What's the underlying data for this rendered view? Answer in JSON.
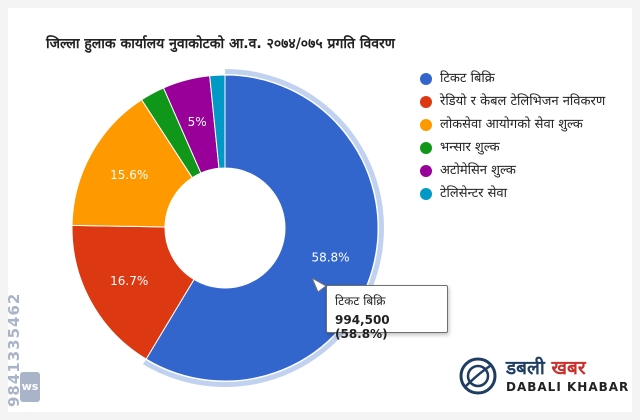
{
  "chart_data": {
    "type": "pie",
    "title": "जिल्ला हुलाक कार्यालय नुवाकोटको आ.व. २०७४/०७५ प्रगति विवरण",
    "series": [
      {
        "name": "टिकट बिक्रि",
        "percent": 58.8,
        "color": "#3366cc",
        "label": "58.8%"
      },
      {
        "name": "रेडियो र केबल टेलिभिजन नविकरण",
        "percent": 16.7,
        "color": "#dc3912",
        "label": "16.7%"
      },
      {
        "name": "लोकसेवा आयोगको सेवा शुल्क",
        "percent": 15.6,
        "color": "#ff9900",
        "label": "15.6%"
      },
      {
        "name": "भन्सार शुल्क",
        "percent": 2.6,
        "color": "#109618",
        "label": ""
      },
      {
        "name": "अटोमेसिन शुल्क",
        "percent": 5.0,
        "color": "#990099",
        "label": "5%"
      },
      {
        "name": "टेलिसेन्टर सेवा",
        "percent": 1.6,
        "color": "#0099c6",
        "label": ""
      }
    ],
    "highlighted": "टिकट बिक्रि",
    "legend": "right",
    "donut": true
  },
  "tooltip": {
    "name": "टिकट बिक्रि",
    "value": "994,500 (58.8%)"
  },
  "watermark": {
    "phone": "9841335462",
    "logo": "ws"
  },
  "brand": {
    "devanagari_dark": "डबली",
    "devanagari_accent": "खबर",
    "english": "DABALI KHABAR"
  },
  "colors": {
    "background": "#f4f4f4"
  }
}
